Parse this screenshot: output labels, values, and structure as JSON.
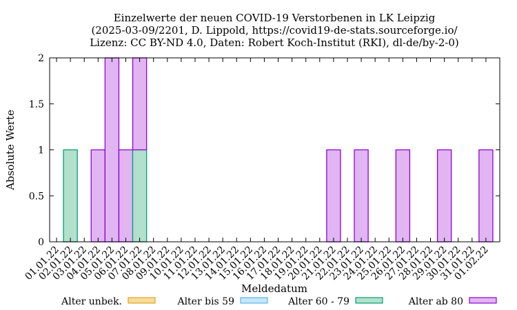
{
  "chart_data": {
    "type": "bar",
    "stacked": true,
    "title": [
      "Einzelwerte der neuen COVID-19 Verstorbenen in LK Leipzig",
      "(2025-03-09/2201, D. Lippold, https://covid19-de-stats.sourceforge.io/",
      "Lizenz: CC BY-ND 4.0, Daten: Robert Koch-Institut (RKI), dl-de/by-2-0)"
    ],
    "xlabel": "Meldedatum",
    "ylabel": "Absolute Werte",
    "ylim": [
      0,
      2
    ],
    "yticks": [
      "0",
      "0.5",
      "1",
      "1.5",
      "2"
    ],
    "ytick_values": [
      0,
      0.5,
      1,
      1.5,
      2
    ],
    "categories": [
      "01.01.22",
      "02.01.22",
      "03.01.22",
      "04.01.22",
      "05.01.22",
      "06.01.22",
      "07.01.22",
      "08.01.22",
      "09.01.22",
      "10.01.22",
      "11.01.22",
      "12.01.22",
      "13.01.22",
      "14.01.22",
      "15.01.22",
      "16.01.22",
      "17.01.22",
      "18.01.22",
      "19.01.22",
      "20.01.22",
      "21.01.22",
      "22.01.22",
      "23.01.22",
      "24.01.22",
      "25.01.22",
      "26.01.22",
      "27.01.22",
      "28.01.22",
      "29.01.22",
      "30.01.22",
      "31.01.22",
      "01.02.22"
    ],
    "series": [
      {
        "name": "Alter unbek.",
        "color": "#f5dc9a",
        "edge": "#e5a022",
        "values": [
          0,
          0,
          0,
          0,
          0,
          0,
          0,
          0,
          0,
          0,
          0,
          0,
          0,
          0,
          0,
          0,
          0,
          0,
          0,
          0,
          0,
          0,
          0,
          0,
          0,
          0,
          0,
          0,
          0,
          0,
          0,
          0
        ]
      },
      {
        "name": "Alter bis 59",
        "color": "#c6e6f7",
        "edge": "#56b4e9",
        "values": [
          0,
          0,
          0,
          0,
          0,
          0,
          0,
          0,
          0,
          0,
          0,
          0,
          0,
          0,
          0,
          0,
          0,
          0,
          0,
          0,
          0,
          0,
          0,
          0,
          0,
          0,
          0,
          0,
          0,
          0,
          0,
          0
        ]
      },
      {
        "name": "Alter 60 - 79",
        "color": "#b3e0cc",
        "edge": "#009e73",
        "values": [
          0,
          1,
          0,
          0,
          0,
          0,
          1,
          0,
          0,
          0,
          0,
          0,
          0,
          0,
          0,
          0,
          0,
          0,
          0,
          0,
          0,
          0,
          0,
          0,
          0,
          0,
          0,
          0,
          0,
          0,
          0,
          0
        ]
      },
      {
        "name": "Alter ab 80",
        "color": "#e0b5f2",
        "edge": "#9400d3",
        "values": [
          0,
          0,
          0,
          1,
          2,
          1,
          1,
          0,
          0,
          0,
          0,
          0,
          0,
          0,
          0,
          0,
          0,
          0,
          0,
          0,
          1,
          0,
          1,
          0,
          0,
          1,
          0,
          0,
          1,
          0,
          0,
          1
        ]
      }
    ],
    "legend_position": "bottom"
  }
}
